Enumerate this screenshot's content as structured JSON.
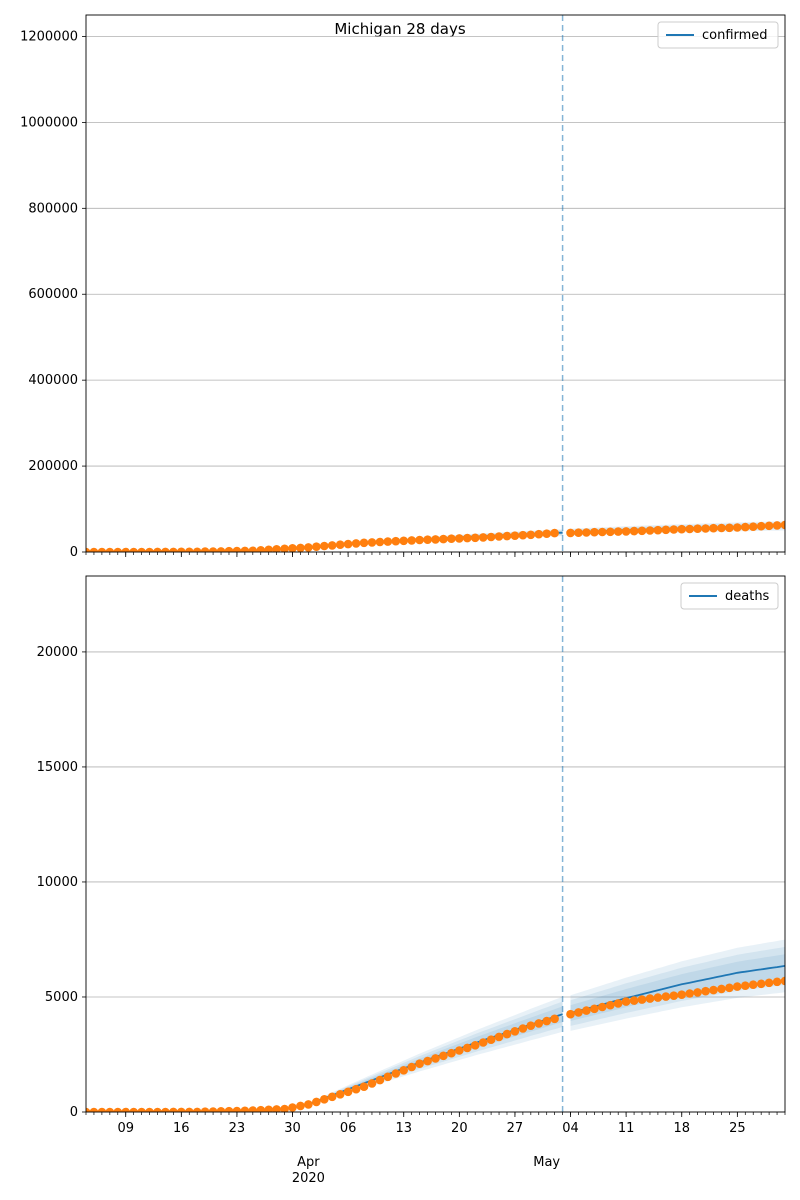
{
  "title": "Michigan 28 days",
  "colors": {
    "model": "#1f77b4",
    "observed": "#ff7f0e",
    "grid": "#b0b0b0",
    "cutoff": "#1f77b4"
  },
  "x_axis": {
    "day_ticks": [
      "09",
      "16",
      "23",
      "30",
      "06",
      "13",
      "20",
      "27",
      "04",
      "11",
      "18",
      "25"
    ],
    "month_labels": [
      "Apr",
      "May"
    ],
    "year_label": "2020"
  },
  "chart_data": [
    {
      "type": "line",
      "legend": {
        "label": "confirmed",
        "position": "top-right"
      },
      "ylim": [
        0,
        1250000
      ],
      "yticks": [
        0,
        200000,
        400000,
        600000,
        800000,
        1000000,
        1200000
      ],
      "grid": true,
      "cutoff_date": "2020-05-03",
      "series": [
        {
          "name": "confirmed",
          "type": "line",
          "x": [
            "2020-03-04",
            "2020-03-11",
            "2020-03-18",
            "2020-03-25",
            "2020-04-01",
            "2020-04-08",
            "2020-04-15",
            "2020-04-22",
            "2020-04-29",
            "2020-05-03",
            "2020-05-04",
            "2020-05-11",
            "2020-05-18",
            "2020-05-25",
            "2020-05-31"
          ],
          "y": [
            1,
            10,
            200,
            2500,
            11000,
            21000,
            29000,
            36000,
            42000,
            45000,
            46000,
            51000,
            55000,
            58500,
            61000
          ]
        },
        {
          "type": "scatter",
          "x": [
            "2020-03-04",
            "2020-03-11",
            "2020-03-18",
            "2020-03-25",
            "2020-04-01",
            "2020-04-08",
            "2020-04-15",
            "2020-04-22",
            "2020-04-29",
            "2020-05-02",
            "2020-05-04",
            "2020-05-11",
            "2020-05-18",
            "2020-05-25",
            "2020-05-31"
          ],
          "y": [
            0,
            0,
            500,
            2800,
            10800,
            21500,
            28000,
            33000,
            40000,
            44000,
            44500,
            48000,
            53000,
            57000,
            63000
          ]
        }
      ]
    },
    {
      "type": "line",
      "legend": {
        "label": "deaths",
        "position": "top-right"
      },
      "ylim": [
        0,
        23300
      ],
      "yticks": [
        0,
        5000,
        10000,
        15000,
        20000
      ],
      "grid": true,
      "cutoff_date": "2020-05-03",
      "series": [
        {
          "name": "deaths",
          "type": "line",
          "x": [
            "2020-03-04",
            "2020-03-11",
            "2020-03-18",
            "2020-03-25",
            "2020-03-29",
            "2020-04-01",
            "2020-04-08",
            "2020-04-15",
            "2020-04-22",
            "2020-04-29",
            "2020-05-03",
            "2020-05-04",
            "2020-05-11",
            "2020-05-18",
            "2020-05-25",
            "2020-05-31"
          ],
          "y": [
            0,
            0,
            2,
            30,
            120,
            330,
            1250,
            2150,
            3000,
            3800,
            4250,
            4300,
            4950,
            5550,
            6050,
            6350
          ]
        },
        {
          "type": "scatter",
          "x": [
            "2020-03-04",
            "2020-03-11",
            "2020-03-18",
            "2020-03-25",
            "2020-03-29",
            "2020-04-01",
            "2020-04-08",
            "2020-04-15",
            "2020-04-22",
            "2020-04-29",
            "2020-05-02",
            "2020-05-04",
            "2020-05-11",
            "2020-05-18",
            "2020-05-25",
            "2020-05-31"
          ],
          "y": [
            0,
            0,
            5,
            60,
            130,
            330,
            1100,
            2100,
            2900,
            3750,
            4050,
            4250,
            4800,
            5100,
            5450,
            5700
          ]
        }
      ]
    }
  ]
}
